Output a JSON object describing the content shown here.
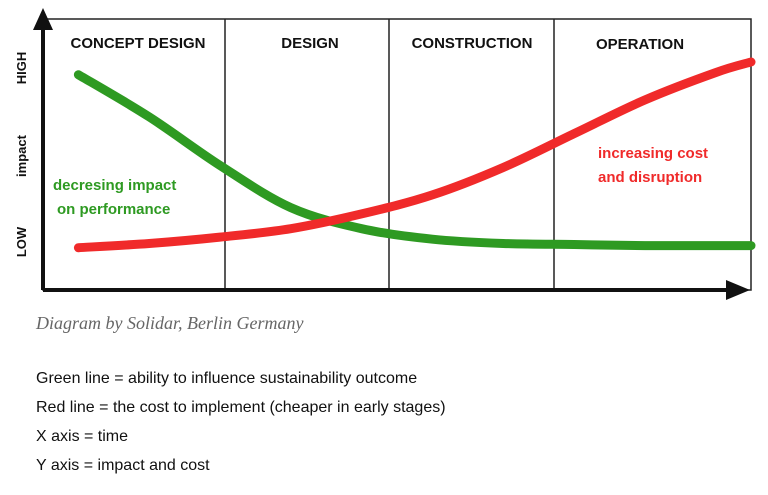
{
  "chart_data": {
    "type": "line",
    "phases": [
      "CONCEPT DESIGN",
      "DESIGN",
      "CONSTRUCTION",
      "OPERATION"
    ],
    "y_labels": {
      "high": "HIGH",
      "middle": "impact",
      "low": "LOW"
    },
    "xlim": [
      0,
      4
    ],
    "ylim": [
      0,
      1
    ],
    "series": [
      {
        "color": "#2e9a22",
        "x": [
          0.2,
          0.6,
          1.0,
          1.4,
          1.8,
          2.2,
          2.6,
          3.0,
          3.4,
          3.8,
          4.0
        ],
        "y": [
          0.94,
          0.74,
          0.51,
          0.31,
          0.21,
          0.16,
          0.14,
          0.135,
          0.13,
          0.13,
          0.13
        ]
      },
      {
        "color": "#f02a2a",
        "x": [
          0.2,
          0.6,
          1.0,
          1.4,
          1.8,
          2.2,
          2.6,
          3.0,
          3.4,
          3.8,
          4.0
        ],
        "y": [
          0.12,
          0.14,
          0.17,
          0.21,
          0.28,
          0.37,
          0.5,
          0.66,
          0.82,
          0.95,
          1.0
        ]
      }
    ],
    "annotations": {
      "green": [
        "decresing impact",
        "on performance"
      ],
      "red": [
        "increasing cost",
        "and disruption"
      ]
    },
    "grid": false
  },
  "credit": "Diagram by Solidar, Berlin Germany",
  "notes": [
    "Green line = ability to influence sustainability outcome",
    "Red line = the cost to implement (cheaper in early stages)",
    "X axis = time",
    "Y axis = impact and cost"
  ]
}
